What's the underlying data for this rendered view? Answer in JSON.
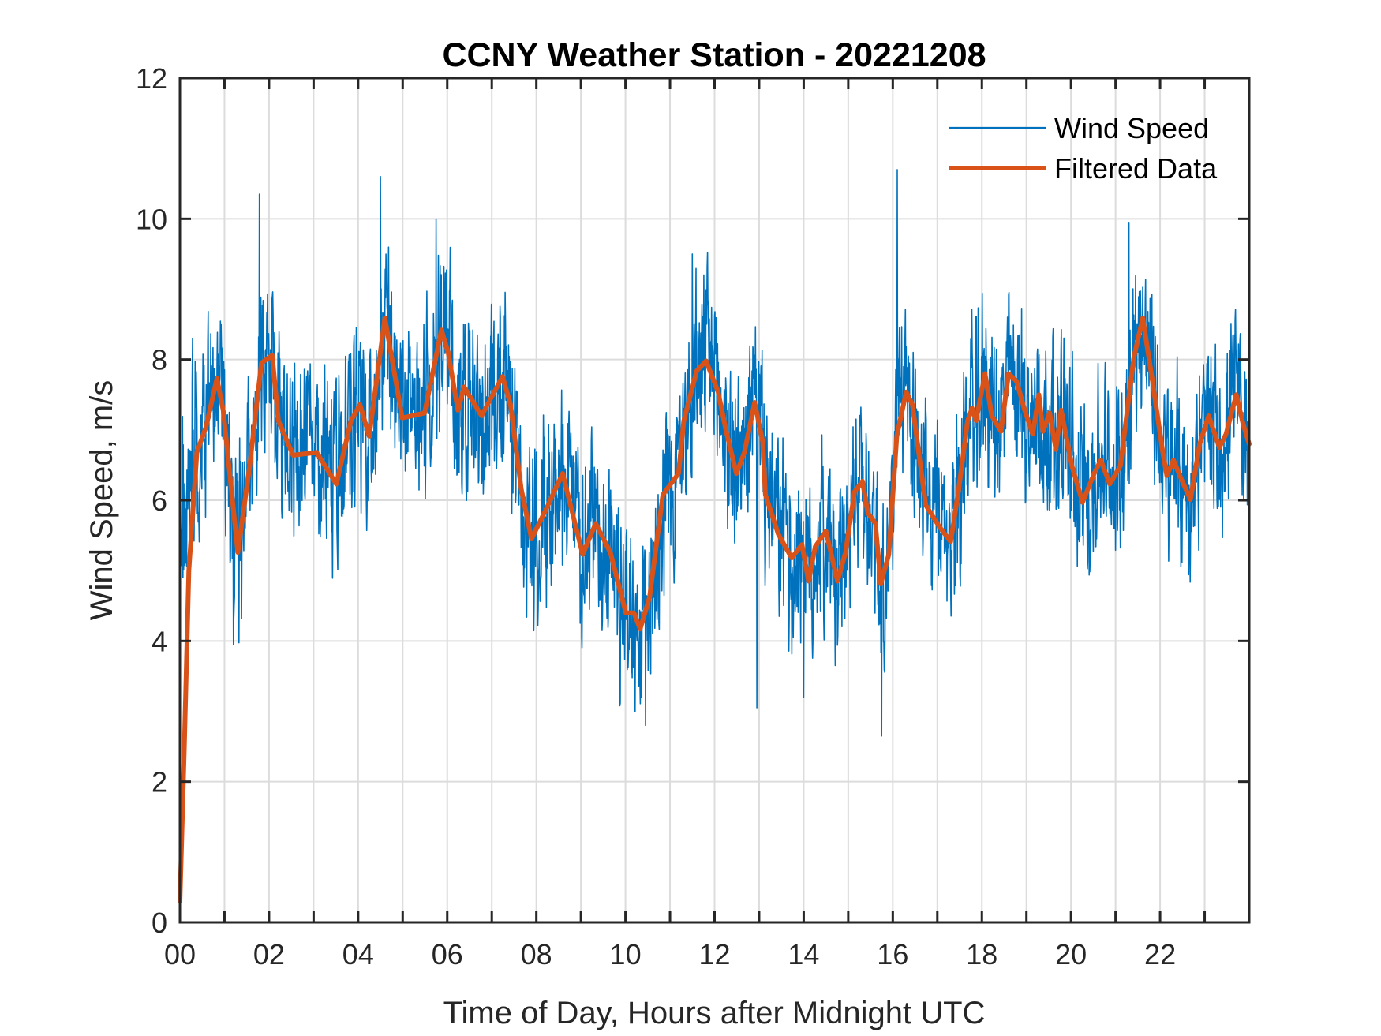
{
  "chart_data": {
    "type": "line",
    "title": "CCNY Weather Station - 20221208",
    "xlabel": "Time of Day, Hours after Midnight UTC",
    "ylabel": "Wind Speed, m/s",
    "xlim": [
      0,
      24
    ],
    "ylim": [
      0,
      12
    ],
    "grid": true,
    "x_ticks": [
      0,
      2,
      4,
      6,
      8,
      10,
      12,
      14,
      16,
      18,
      20,
      22
    ],
    "x_tick_labels": [
      "00",
      "02",
      "04",
      "06",
      "08",
      "10",
      "12",
      "14",
      "16",
      "18",
      "20",
      "22"
    ],
    "x_minor_ticks": [
      1,
      3,
      5,
      7,
      9,
      11,
      13,
      15,
      17,
      19,
      21,
      23
    ],
    "y_ticks": [
      0,
      2,
      4,
      6,
      8,
      10,
      12
    ],
    "y_tick_labels": [
      "0",
      "2",
      "4",
      "6",
      "8",
      "10",
      "12"
    ],
    "legend": {
      "placement": "top-right",
      "boxed": false
    },
    "series": [
      {
        "name": "Wind Speed",
        "color": "#0072BD",
        "style": "thin",
        "description": "High-frequency raw wind speed samples fluctuating around the filtered curve (approx. ±1.5 m/s)",
        "envelope_reference": "Filtered Data",
        "notable_points": [
          {
            "x": 1.78,
            "y": 10.35
          },
          {
            "x": 4.5,
            "y": 10.6
          },
          {
            "x": 5.75,
            "y": 10.0
          },
          {
            "x": 10.45,
            "y": 2.8
          },
          {
            "x": 11.5,
            "y": 9.5
          },
          {
            "x": 12.95,
            "y": 3.05
          },
          {
            "x": 15.75,
            "y": 2.65
          },
          {
            "x": 16.1,
            "y": 10.7
          },
          {
            "x": 21.3,
            "y": 9.95
          },
          {
            "x": 1.2,
            "y": 3.95
          },
          {
            "x": 14.0,
            "y": 3.2
          }
        ]
      },
      {
        "name": "Filtered Data",
        "color": "#D95319",
        "style": "thick",
        "x": [
          0.0,
          0.1,
          0.2,
          0.38,
          0.59,
          0.83,
          0.97,
          1.3,
          1.56,
          1.83,
          2.07,
          2.21,
          2.54,
          3.07,
          3.51,
          3.84,
          4.04,
          4.25,
          4.6,
          4.99,
          5.49,
          5.87,
          6.02,
          6.24,
          6.38,
          6.77,
          7.24,
          7.42,
          7.66,
          7.89,
          8.24,
          8.59,
          9.04,
          9.33,
          9.66,
          10.01,
          10.19,
          10.33,
          10.54,
          10.84,
          11.19,
          11.31,
          11.6,
          11.81,
          12.08,
          12.26,
          12.49,
          12.67,
          12.9,
          13.08,
          13.14,
          13.43,
          13.73,
          13.96,
          14.11,
          14.26,
          14.5,
          14.76,
          14.94,
          15.14,
          15.32,
          15.44,
          15.61,
          15.73,
          15.91,
          16.09,
          16.3,
          16.44,
          16.74,
          17.04,
          17.3,
          17.48,
          17.68,
          17.78,
          17.87,
          18.07,
          18.22,
          18.43,
          18.6,
          18.78,
          18.96,
          19.14,
          19.28,
          19.37,
          19.52,
          19.66,
          19.78,
          20.02,
          20.26,
          20.52,
          20.67,
          20.87,
          21.11,
          21.41,
          21.61,
          21.82,
          22.06,
          22.15,
          22.3,
          22.47,
          22.68,
          22.89,
          23.09,
          23.33,
          23.48,
          23.71,
          23.86,
          24.0
        ],
        "y": [
          0.3,
          2.5,
          5.0,
          6.68,
          7.05,
          7.73,
          7.28,
          5.26,
          6.46,
          7.95,
          8.06,
          7.13,
          6.64,
          6.68,
          6.23,
          7.13,
          7.36,
          6.91,
          8.59,
          7.17,
          7.24,
          8.42,
          8.1,
          7.28,
          7.61,
          7.2,
          7.76,
          7.36,
          6.16,
          5.45,
          5.9,
          6.38,
          5.23,
          5.67,
          5.26,
          4.4,
          4.4,
          4.17,
          4.62,
          6.08,
          6.38,
          7.13,
          7.84,
          7.98,
          7.54,
          6.98,
          6.38,
          6.68,
          7.39,
          6.83,
          6.08,
          5.52,
          5.18,
          5.37,
          4.85,
          5.34,
          5.56,
          4.85,
          5.26,
          6.12,
          6.27,
          5.82,
          5.67,
          4.81,
          5.23,
          6.91,
          7.54,
          7.36,
          5.93,
          5.63,
          5.41,
          6.16,
          7.13,
          7.31,
          7.13,
          7.8,
          7.2,
          6.98,
          7.8,
          7.69,
          7.28,
          6.94,
          7.5,
          6.98,
          7.24,
          6.72,
          7.28,
          6.49,
          5.97,
          6.38,
          6.57,
          6.23,
          6.49,
          8.03,
          8.59,
          7.73,
          6.68,
          6.35,
          6.57,
          6.31,
          6.01,
          6.8,
          7.2,
          6.75,
          6.94,
          7.5,
          7.09,
          6.8
        ]
      }
    ]
  }
}
